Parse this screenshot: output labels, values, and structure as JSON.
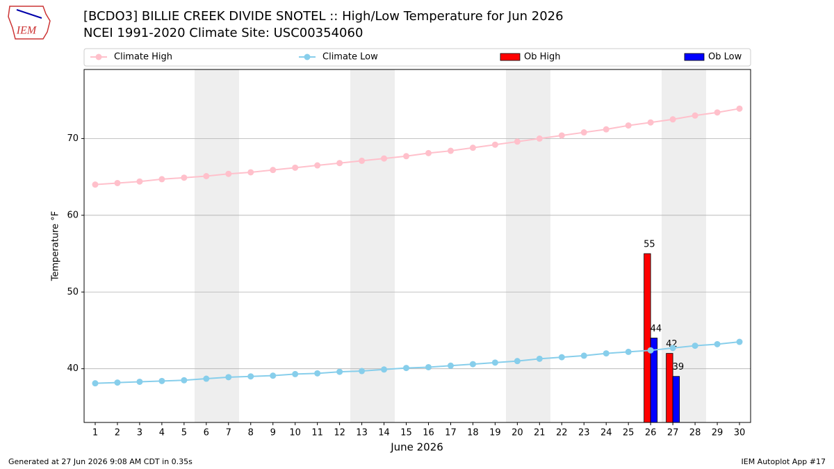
{
  "logo_text": "IEM",
  "chart_data": {
    "type": "bar",
    "title": "[BCDO3] BILLIE CREEK DIVIDE SNOTEL :: High/Low Temperature for Jun 2026",
    "subtitle": "NCEI 1991-2020 Climate Site: USC00354060",
    "xlabel": "June 2026",
    "ylabel": "Temperature °F",
    "categories": [
      "1",
      "2",
      "3",
      "4",
      "5",
      "6",
      "7",
      "8",
      "9",
      "10",
      "11",
      "12",
      "13",
      "14",
      "15",
      "16",
      "17",
      "18",
      "19",
      "20",
      "21",
      "22",
      "23",
      "24",
      "25",
      "26",
      "27",
      "28",
      "29",
      "30"
    ],
    "series": [
      {
        "name": "Climate High",
        "type": "line",
        "color": "#ffc0cb",
        "values": [
          64.0,
          64.2,
          64.4,
          64.7,
          64.9,
          65.1,
          65.4,
          65.6,
          65.9,
          66.2,
          66.5,
          66.8,
          67.1,
          67.4,
          67.7,
          68.1,
          68.4,
          68.8,
          69.2,
          69.6,
          70.0,
          70.4,
          70.8,
          71.2,
          71.7,
          72.1,
          72.5,
          73.0,
          73.4,
          73.9
        ]
      },
      {
        "name": "Climate Low",
        "type": "line",
        "color": "#87ceeb",
        "values": [
          38.1,
          38.2,
          38.3,
          38.4,
          38.5,
          38.7,
          38.9,
          39.0,
          39.1,
          39.3,
          39.4,
          39.6,
          39.7,
          39.9,
          40.1,
          40.2,
          40.4,
          40.6,
          40.8,
          41.0,
          41.3,
          41.5,
          41.7,
          42.0,
          42.2,
          42.4,
          42.7,
          43.0,
          43.2,
          43.5
        ]
      },
      {
        "name": "Ob High",
        "type": "bar",
        "color": "#ff0000",
        "values": [
          null,
          null,
          null,
          null,
          null,
          null,
          null,
          null,
          null,
          null,
          null,
          null,
          null,
          null,
          null,
          null,
          null,
          null,
          null,
          null,
          null,
          null,
          null,
          null,
          null,
          55,
          42,
          null,
          null,
          null
        ]
      },
      {
        "name": "Ob Low",
        "type": "bar",
        "color": "#0000ff",
        "values": [
          null,
          null,
          null,
          null,
          null,
          null,
          null,
          null,
          null,
          null,
          null,
          null,
          null,
          null,
          null,
          null,
          null,
          null,
          null,
          null,
          null,
          null,
          null,
          null,
          null,
          44,
          39,
          null,
          null,
          null
        ]
      }
    ],
    "ylim": [
      33,
      79
    ],
    "yticks": [
      40,
      50,
      60,
      70
    ],
    "grid": true,
    "footer_left": "Generated at 27 Jun 2026 9:08 AM CDT in 0.35s",
    "footer_right": "IEM Autoplot App #17"
  }
}
